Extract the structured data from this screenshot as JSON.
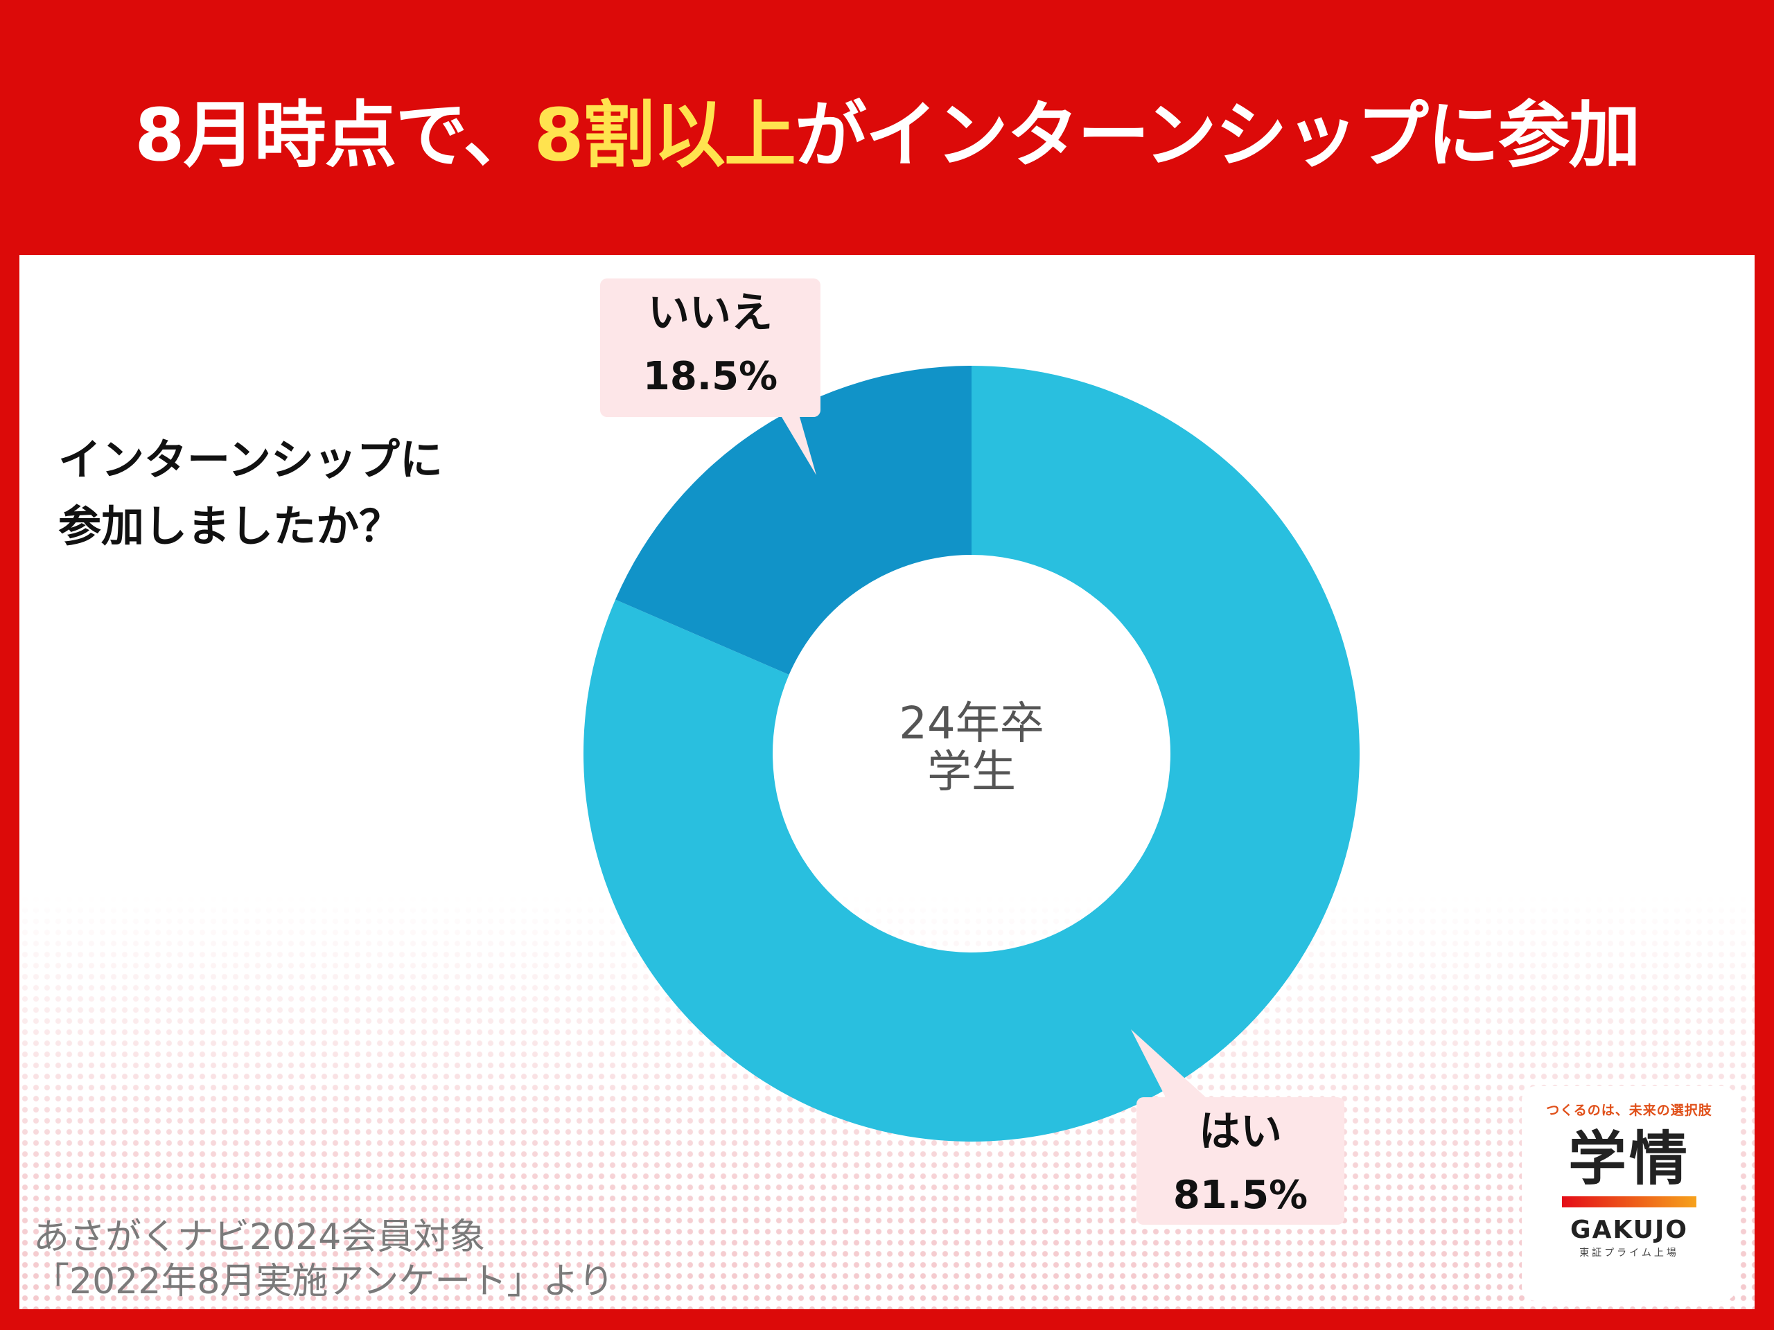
{
  "header": {
    "title_part1": "8月時点で、",
    "title_highlight": "8割以上",
    "title_part2": "がインターンシップに参加",
    "highlight_color": "#ffe34f",
    "background_color": "#dc0a09"
  },
  "question": {
    "line1": "インターンシップに",
    "line2": "参加しましたか？"
  },
  "chart_data": {
    "type": "pie",
    "donut": true,
    "center_label": [
      "24年卒",
      "学生"
    ],
    "slices": [
      {
        "label": "はい",
        "value": 81.5,
        "display": "81.5%",
        "color": "#29bfdf"
      },
      {
        "label": "いいえ",
        "value": 18.5,
        "display": "18.5%",
        "color": "#1193c8"
      }
    ],
    "callout_color": "#fde6e8"
  },
  "source": {
    "line1": "あさがくナビ2024会員対象",
    "line2": "「2022年8月実施アンケート」より"
  },
  "logo": {
    "tagline": "つくるのは、未来の選択肢",
    "name_ja": "学情",
    "name_en": "GAKUJO",
    "subtext": "東証プライム上場"
  }
}
